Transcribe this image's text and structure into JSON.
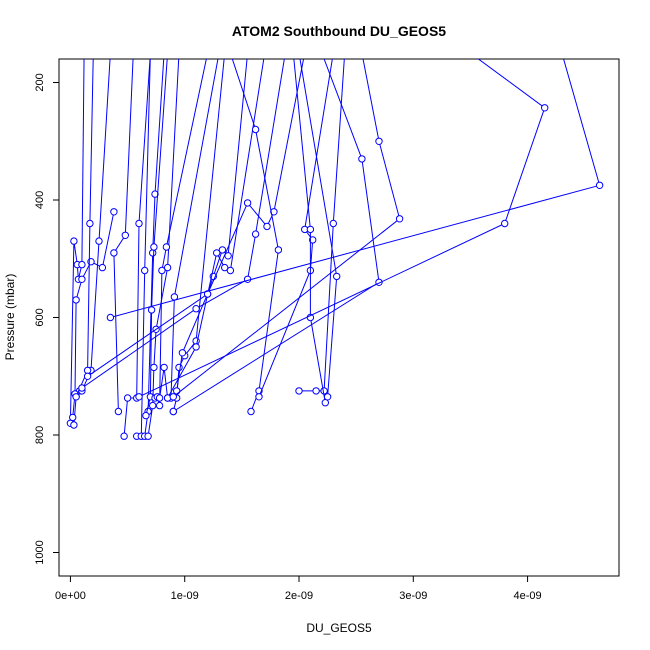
{
  "chart_data": {
    "type": "line",
    "title": "ATOM2 Southbound DU_GEOS5",
    "xlabel": "DU_GEOS5",
    "ylabel": "Pressure (mbar)",
    "xlim": [
      -1e-10,
      4.8e-09
    ],
    "ylim": [
      1040,
      160
    ],
    "y_reversed": true,
    "grid": false,
    "legend": "none",
    "x_ticks": [
      {
        "value": 0,
        "label": "0e+00"
      },
      {
        "value": 1e-09,
        "label": "1e-09"
      },
      {
        "value": 2e-09,
        "label": "2e-09"
      },
      {
        "value": 3e-09,
        "label": "3e-09"
      },
      {
        "value": 4e-09,
        "label": "4e-09"
      }
    ],
    "y_ticks": [
      {
        "value": 200,
        "label": "200"
      },
      {
        "value": 400,
        "label": "400"
      },
      {
        "value": 600,
        "label": "600"
      },
      {
        "value": 800,
        "label": "800"
      },
      {
        "value": 1000,
        "label": "1000"
      }
    ],
    "color": "#0000ff",
    "series": [
      {
        "x": [
          0.0,
          3e-11,
          6e-11,
          7e-11,
          1e-10,
          1.2e-10,
          2e-10
        ],
        "y": [
          780,
          470,
          510,
          535,
          510,
          150,
          150
        ]
      },
      {
        "x": [
          3e-11,
          5e-11,
          8e-11,
          1e-10,
          1.8e-10,
          2.5e-10,
          3.5e-10
        ],
        "y": [
          783,
          735,
          725,
          725,
          690,
          470,
          150
        ]
      },
      {
        "x": [
          2e-11,
          4e-11,
          5e-11,
          1e-10,
          1.8e-10,
          2.8e-10,
          3.8e-10
        ],
        "y": [
          770,
          730,
          570,
          535,
          505,
          515,
          420
        ]
      },
      {
        "x": [
          5e-11,
          1.5e-10,
          1.7e-10,
          2e-10,
          4.5e-10
        ],
        "y": [
          735,
          690,
          440,
          150,
          150
        ]
      },
      {
        "x": [
          4.2e-10,
          3.8e-10,
          4.8e-10,
          5.5e-10,
          5.8e-10
        ],
        "y": [
          760,
          490,
          460,
          150,
          150
        ]
      },
      {
        "x": [
          4.7e-10,
          5e-10,
          5.8e-10,
          6e-10,
          7e-10
        ],
        "y": [
          802,
          737,
          737,
          440,
          150
        ]
      },
      {
        "x": [
          5.8e-10,
          6.2e-10,
          6.5e-10,
          7e-10,
          7.5e-10
        ],
        "y": [
          802,
          802,
          520,
          150,
          150
        ]
      },
      {
        "x": [
          6.5e-10,
          6.8e-10,
          7.2e-10,
          7.4e-10,
          8.2e-10
        ],
        "y": [
          802,
          760,
          490,
          390,
          150
        ]
      },
      {
        "x": [
          6.6e-10,
          7e-10,
          7.1e-10,
          7.3e-10,
          8.5e-10
        ],
        "y": [
          767,
          735,
          587,
          480,
          150
        ]
      },
      {
        "x": [
          6.8e-10,
          7.2e-10,
          7.3e-10,
          7.5e-10,
          8.5e-10,
          9.5e-10
        ],
        "y": [
          802,
          750,
          685,
          620,
          515,
          150
        ]
      },
      {
        "x": [
          7.4e-10,
          7.6e-10,
          7.8e-10,
          8e-10,
          8.4e-10,
          1.2e-09
        ],
        "y": [
          737,
          735,
          750,
          520,
          480,
          150
        ]
      },
      {
        "x": [
          7.8e-10,
          8.2e-10,
          8.5e-10,
          8.8e-10,
          9.1e-10,
          1.3e-09
        ],
        "y": [
          737,
          685,
          737,
          737,
          565,
          150
        ]
      },
      {
        "x": [
          9e-10,
          9.3e-10,
          9.5e-10,
          1e-09,
          1.1e-09,
          1.35e-09
        ],
        "y": [
          760,
          737,
          685,
          665,
          640,
          150
        ]
      },
      {
        "x": [
          9.3e-10,
          9.8e-10,
          1.2e-09,
          1.25e-09,
          1.33e-09,
          1.38e-09,
          1.55e-09
        ],
        "y": [
          725,
          660,
          560,
          530,
          485,
          495,
          150
        ]
      },
      {
        "x": [
          8.5e-10,
          1.1e-09,
          1.28e-09,
          1.35e-09,
          1.4e-09,
          1.7e-09
        ],
        "y": [
          737,
          650,
          490,
          515,
          520,
          150
        ]
      },
      {
        "x": [
          1e-10,
          1.1e-09,
          1.55e-09,
          1.62e-09,
          1.88e-09
        ],
        "y": [
          720,
          585,
          535,
          458,
          150
        ]
      },
      {
        "x": [
          1.5e-10,
          1.2e-09,
          1.55e-09,
          1.72e-09,
          1.78e-09,
          2.05e-09
        ],
        "y": [
          700,
          560,
          405,
          445,
          420,
          150
        ]
      },
      {
        "x": [
          1.58e-09,
          1.65e-09,
          1.82e-09,
          1.62e-09,
          1.4e-09
        ],
        "y": [
          760,
          725,
          485,
          280,
          150
        ]
      },
      {
        "x": [
          1.65e-09,
          2.1e-09,
          2.12e-09,
          2.05e-09,
          2.3e-09
        ],
        "y": [
          735,
          520,
          468,
          450,
          150
        ]
      },
      {
        "x": [
          2e-09,
          2.15e-09,
          2.22e-09,
          2.3e-09,
          2.4e-09
        ],
        "y": [
          725,
          725,
          725,
          440,
          150
        ]
      },
      {
        "x": [
          2.23e-09,
          2.1e-09,
          2.1e-09,
          1.95e-09,
          2.6e-09
        ],
        "y": [
          745,
          600,
          450,
          150,
          150
        ]
      },
      {
        "x": [
          2.25e-09,
          2.33e-09,
          2e-09,
          2.4e-09
        ],
        "y": [
          735,
          530,
          150,
          150
        ]
      },
      {
        "x": [
          9e-10,
          2.7e-09,
          2.55e-09,
          2.2e-09
        ],
        "y": [
          760,
          540,
          330,
          150
        ]
      },
      {
        "x": [
          9e-10,
          2.88e-09,
          2.7e-09,
          2.55e-09
        ],
        "y": [
          735,
          432,
          300,
          150
        ]
      },
      {
        "x": [
          6e-10,
          3.8e-09,
          4.15e-09,
          3.5e-09,
          3.3e-09
        ],
        "y": [
          735,
          440,
          243,
          150,
          150
        ]
      },
      {
        "x": [
          3.5e-10,
          4.63e-09,
          4.3e-09,
          3.2e-09
        ],
        "y": [
          600,
          375,
          150,
          150
        ]
      }
    ]
  }
}
